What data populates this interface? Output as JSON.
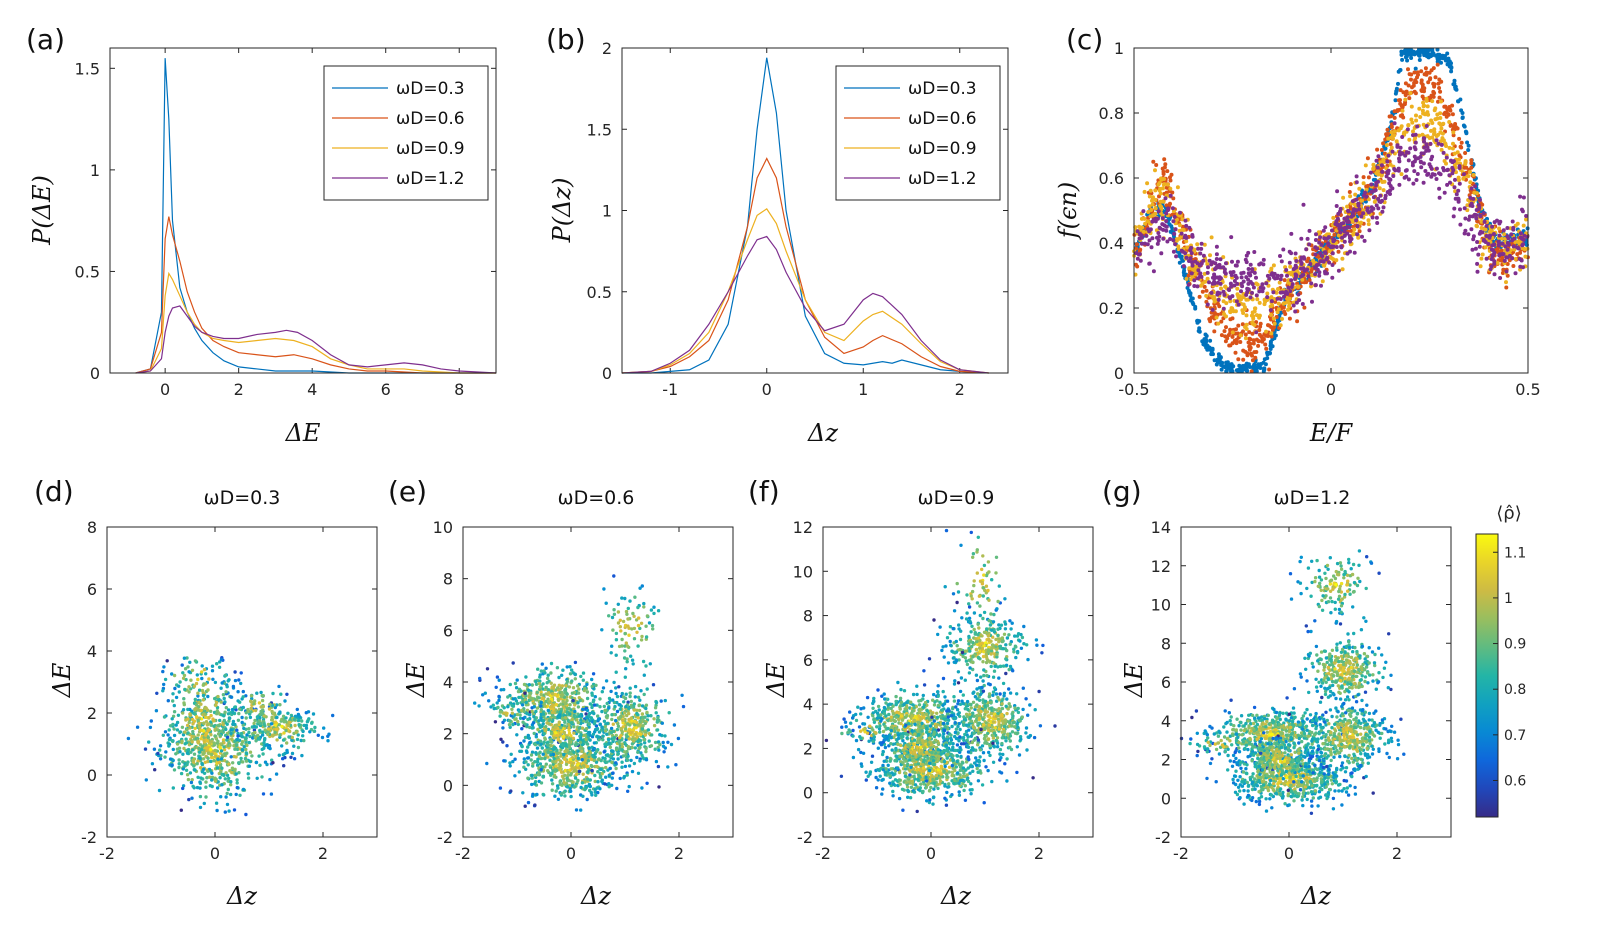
{
  "colors": {
    "s1": "#0072BD",
    "s2": "#D95319",
    "s3": "#EDB120",
    "s4": "#7E2F8E"
  },
  "colorbar": {
    "label": "⟨ρ̂⟩",
    "ticks": [
      "0.6",
      "0.7",
      "0.8",
      "0.9",
      "1",
      "1.1"
    ],
    "range": [
      0.52,
      1.14
    ]
  },
  "chart_data": [
    {
      "panel": "(a)",
      "type": "line",
      "xlabel": "ΔE",
      "ylabel": "P(ΔE)",
      "xlim": [
        -1.5,
        9
      ],
      "ylim": [
        0,
        1.6
      ],
      "xticks": [
        "0",
        "2",
        "4",
        "6",
        "8"
      ],
      "yticks": [
        "0",
        "0.5",
        "1",
        "1.5"
      ],
      "legend_position": "top-right",
      "series": [
        {
          "name": "ωD=0.3",
          "x": [
            -0.8,
            -0.4,
            -0.1,
            0,
            0.1,
            0.2,
            0.4,
            0.6,
            0.8,
            1.0,
            1.3,
            1.6,
            2,
            2.5,
            3,
            4,
            5,
            6,
            7,
            8,
            9
          ],
          "y": [
            0,
            0.02,
            0.3,
            1.55,
            1.25,
            0.75,
            0.42,
            0.3,
            0.22,
            0.16,
            0.1,
            0.06,
            0.03,
            0.02,
            0.01,
            0.01,
            0,
            0,
            0,
            0,
            0
          ]
        },
        {
          "name": "ωD=0.6",
          "x": [
            -0.8,
            -0.4,
            -0.1,
            0,
            0.1,
            0.2,
            0.4,
            0.6,
            0.8,
            1.0,
            1.3,
            1.6,
            2,
            2.5,
            3,
            3.5,
            4,
            4.5,
            5,
            5.5,
            6,
            7,
            8,
            9
          ],
          "y": [
            0,
            0.02,
            0.2,
            0.66,
            0.77,
            0.68,
            0.55,
            0.4,
            0.3,
            0.22,
            0.16,
            0.13,
            0.1,
            0.09,
            0.08,
            0.09,
            0.07,
            0.04,
            0.02,
            0.01,
            0.01,
            0,
            0,
            0
          ]
        },
        {
          "name": "ωD=0.9",
          "x": [
            -0.8,
            -0.4,
            -0.1,
            0,
            0.1,
            0.2,
            0.4,
            0.6,
            0.8,
            1.0,
            1.3,
            1.6,
            2,
            2.5,
            3,
            3.5,
            4,
            4.5,
            5,
            5.5,
            6,
            6.5,
            7,
            8,
            9
          ],
          "y": [
            0,
            0.01,
            0.12,
            0.38,
            0.49,
            0.46,
            0.38,
            0.3,
            0.24,
            0.2,
            0.17,
            0.16,
            0.15,
            0.16,
            0.17,
            0.16,
            0.13,
            0.07,
            0.04,
            0.02,
            0.02,
            0.02,
            0.01,
            0,
            0
          ]
        },
        {
          "name": "ωD=1.2",
          "x": [
            -0.8,
            -0.4,
            -0.1,
            0,
            0.1,
            0.2,
            0.4,
            0.6,
            0.8,
            1.0,
            1.3,
            1.6,
            2,
            2.5,
            3,
            3.3,
            3.6,
            4,
            4.5,
            5,
            5.5,
            6,
            6.5,
            7,
            7.5,
            8,
            9
          ],
          "y": [
            0,
            0.01,
            0.07,
            0.2,
            0.28,
            0.32,
            0.33,
            0.28,
            0.23,
            0.2,
            0.18,
            0.17,
            0.17,
            0.19,
            0.2,
            0.21,
            0.2,
            0.16,
            0.09,
            0.04,
            0.03,
            0.04,
            0.05,
            0.04,
            0.02,
            0.01,
            0
          ]
        }
      ]
    },
    {
      "panel": "(b)",
      "type": "line",
      "xlabel": "Δz",
      "ylabel": "P(Δz)",
      "xlim": [
        -1.5,
        2.5
      ],
      "ylim": [
        0,
        2
      ],
      "xticks": [
        "-1",
        "0",
        "1",
        "2"
      ],
      "yticks": [
        "0",
        "0.5",
        "1",
        "1.5",
        "2"
      ],
      "legend_position": "top-right",
      "series": [
        {
          "name": "ωD=0.3",
          "x": [
            -1.5,
            -1.2,
            -1,
            -0.8,
            -0.6,
            -0.4,
            -0.2,
            -0.1,
            0,
            0.1,
            0.2,
            0.4,
            0.6,
            0.8,
            1.0,
            1.2,
            1.3,
            1.4,
            1.6,
            1.8,
            2.0,
            2.3
          ],
          "y": [
            0,
            0,
            0.01,
            0.02,
            0.08,
            0.3,
            0.9,
            1.5,
            1.94,
            1.6,
            1.0,
            0.35,
            0.12,
            0.06,
            0.05,
            0.07,
            0.06,
            0.08,
            0.05,
            0.02,
            0.01,
            0
          ]
        },
        {
          "name": "ωD=0.6",
          "x": [
            -1.5,
            -1.2,
            -1,
            -0.8,
            -0.6,
            -0.4,
            -0.2,
            -0.1,
            0,
            0.1,
            0.2,
            0.4,
            0.6,
            0.8,
            1.0,
            1.1,
            1.2,
            1.4,
            1.6,
            1.8,
            2.0,
            2.3
          ],
          "y": [
            0,
            0.01,
            0.04,
            0.1,
            0.2,
            0.45,
            0.9,
            1.2,
            1.32,
            1.2,
            0.9,
            0.45,
            0.22,
            0.12,
            0.16,
            0.2,
            0.23,
            0.18,
            0.1,
            0.04,
            0.01,
            0
          ]
        },
        {
          "name": "ωD=0.9",
          "x": [
            -1.5,
            -1.2,
            -1,
            -0.8,
            -0.6,
            -0.4,
            -0.2,
            -0.1,
            0,
            0.1,
            0.2,
            0.4,
            0.6,
            0.8,
            1.0,
            1.1,
            1.2,
            1.4,
            1.6,
            1.8,
            2.0,
            2.3
          ],
          "y": [
            0,
            0.01,
            0.05,
            0.12,
            0.25,
            0.5,
            0.82,
            0.97,
            1.01,
            0.92,
            0.75,
            0.45,
            0.25,
            0.2,
            0.32,
            0.36,
            0.38,
            0.3,
            0.18,
            0.07,
            0.02,
            0
          ]
        },
        {
          "name": "ωD=1.2",
          "x": [
            -1.5,
            -1.2,
            -1,
            -0.8,
            -0.6,
            -0.4,
            -0.2,
            -0.1,
            0,
            0.1,
            0.2,
            0.4,
            0.6,
            0.8,
            1.0,
            1.1,
            1.2,
            1.4,
            1.6,
            1.8,
            2.0,
            2.3
          ],
          "y": [
            0,
            0.01,
            0.06,
            0.14,
            0.3,
            0.5,
            0.72,
            0.82,
            0.84,
            0.76,
            0.62,
            0.4,
            0.26,
            0.3,
            0.45,
            0.49,
            0.47,
            0.36,
            0.2,
            0.08,
            0.02,
            0
          ]
        }
      ]
    },
    {
      "panel": "(c)",
      "type": "scatter",
      "xlabel": "E/F",
      "ylabel": "f(ϵn)",
      "xlim": [
        -0.5,
        0.5
      ],
      "ylim": [
        0,
        1
      ],
      "xticks": [
        "-0.5",
        "0",
        "0.5"
      ],
      "yticks": [
        "0",
        "0.2",
        "0.4",
        "0.6",
        "0.8",
        "1"
      ],
      "series": [
        {
          "name": "ωD=0.3",
          "trend": [
            [
              -0.5,
              0.36
            ],
            [
              -0.46,
              0.5
            ],
            [
              -0.42,
              0.5
            ],
            [
              -0.38,
              0.35
            ],
            [
              -0.33,
              0.12
            ],
            [
              -0.28,
              0.03
            ],
            [
              -0.24,
              0.01
            ],
            [
              -0.17,
              0.02
            ],
            [
              -0.12,
              0.22
            ],
            [
              -0.05,
              0.32
            ],
            [
              0.0,
              0.4
            ],
            [
              0.05,
              0.48
            ],
            [
              0.1,
              0.56
            ],
            [
              0.15,
              0.75
            ],
            [
              0.18,
              0.98
            ],
            [
              0.25,
              0.99
            ],
            [
              0.3,
              0.96
            ],
            [
              0.35,
              0.7
            ],
            [
              0.38,
              0.5
            ],
            [
              0.42,
              0.4
            ],
            [
              0.5,
              0.42
            ]
          ]
        },
        {
          "name": "ωD=0.6",
          "trend": [
            [
              -0.5,
              0.36
            ],
            [
              -0.46,
              0.5
            ],
            [
              -0.43,
              0.6
            ],
            [
              -0.38,
              0.45
            ],
            [
              -0.32,
              0.25
            ],
            [
              -0.27,
              0.14
            ],
            [
              -0.22,
              0.08
            ],
            [
              -0.17,
              0.12
            ],
            [
              -0.12,
              0.22
            ],
            [
              -0.05,
              0.32
            ],
            [
              0.0,
              0.4
            ],
            [
              0.05,
              0.48
            ],
            [
              0.1,
              0.56
            ],
            [
              0.15,
              0.72
            ],
            [
              0.2,
              0.9
            ],
            [
              0.27,
              0.88
            ],
            [
              0.32,
              0.72
            ],
            [
              0.36,
              0.55
            ],
            [
              0.4,
              0.4
            ],
            [
              0.45,
              0.35
            ],
            [
              0.5,
              0.42
            ]
          ]
        },
        {
          "name": "ωD=0.9",
          "trend": [
            [
              -0.5,
              0.36
            ],
            [
              -0.46,
              0.5
            ],
            [
              -0.42,
              0.55
            ],
            [
              -0.37,
              0.4
            ],
            [
              -0.31,
              0.28
            ],
            [
              -0.25,
              0.22
            ],
            [
              -0.19,
              0.2
            ],
            [
              -0.14,
              0.24
            ],
            [
              -0.08,
              0.3
            ],
            [
              0.0,
              0.4
            ],
            [
              0.06,
              0.48
            ],
            [
              0.12,
              0.58
            ],
            [
              0.18,
              0.74
            ],
            [
              0.24,
              0.78
            ],
            [
              0.3,
              0.7
            ],
            [
              0.35,
              0.55
            ],
            [
              0.4,
              0.42
            ],
            [
              0.45,
              0.38
            ],
            [
              0.5,
              0.42
            ]
          ]
        },
        {
          "name": "ωD=1.2",
          "trend": [
            [
              -0.5,
              0.36
            ],
            [
              -0.46,
              0.44
            ],
            [
              -0.42,
              0.46
            ],
            [
              -0.37,
              0.38
            ],
            [
              -0.31,
              0.3
            ],
            [
              -0.25,
              0.28
            ],
            [
              -0.19,
              0.27
            ],
            [
              -0.14,
              0.28
            ],
            [
              -0.08,
              0.32
            ],
            [
              0.0,
              0.4
            ],
            [
              0.06,
              0.46
            ],
            [
              0.12,
              0.55
            ],
            [
              0.18,
              0.66
            ],
            [
              0.24,
              0.68
            ],
            [
              0.3,
              0.6
            ],
            [
              0.35,
              0.5
            ],
            [
              0.4,
              0.4
            ],
            [
              0.45,
              0.38
            ],
            [
              0.5,
              0.42
            ]
          ]
        }
      ]
    },
    {
      "panel": "(d)",
      "type": "scatter",
      "title": "ωD=0.3",
      "xlabel": "Δz",
      "ylabel": "ΔE",
      "xlim": [
        -2,
        3
      ],
      "ylim": [
        -2,
        8
      ],
      "xticks": [
        "-2",
        "0",
        "2"
      ],
      "yticks": [
        "-2",
        "0",
        "2",
        "4",
        "6",
        "8"
      ],
      "clusters": [
        [
          0.0,
          0.8,
          0.5,
          0.8,
          500
        ],
        [
          -0.2,
          1.6,
          0.35,
          0.9,
          300
        ],
        [
          1.2,
          1.5,
          0.35,
          0.35,
          220
        ],
        [
          0.8,
          2.2,
          0.25,
          0.3,
          60
        ],
        [
          -0.3,
          3.2,
          0.3,
          0.4,
          40
        ]
      ]
    },
    {
      "panel": "(e)",
      "type": "scatter",
      "title": "ωD=0.6",
      "xlabel": "Δz",
      "ylabel": "ΔE",
      "xlim": [
        -2,
        3
      ],
      "ylim": [
        -2,
        10
      ],
      "xticks": [
        "-2",
        "0",
        "2"
      ],
      "yticks": [
        "-2",
        "0",
        "2",
        "4",
        "6",
        "8",
        "10"
      ],
      "clusters": [
        [
          0.0,
          0.8,
          0.5,
          0.6,
          550
        ],
        [
          -0.3,
          3.3,
          0.5,
          0.6,
          500
        ],
        [
          1.1,
          2.2,
          0.35,
          0.7,
          380
        ],
        [
          -0.2,
          2.0,
          0.35,
          0.5,
          250
        ],
        [
          1.1,
          6.1,
          0.25,
          0.8,
          90
        ],
        [
          -1.1,
          2.7,
          0.25,
          0.25,
          40
        ]
      ]
    },
    {
      "panel": "(f)",
      "type": "scatter",
      "title": "ωD=0.9",
      "xlabel": "Δz",
      "ylabel": "ΔE",
      "xlim": [
        -2,
        3
      ],
      "ylim": [
        -2,
        12
      ],
      "xticks": [
        "-2",
        "0",
        "2"
      ],
      "yticks": [
        "-2",
        "0",
        "2",
        "4",
        "6",
        "8",
        "10",
        "12"
      ],
      "clusters": [
        [
          0.0,
          1.0,
          0.5,
          0.6,
          550
        ],
        [
          -0.3,
          3.3,
          0.5,
          0.6,
          500
        ],
        [
          1.1,
          3.2,
          0.35,
          0.8,
          420
        ],
        [
          1.0,
          6.6,
          0.35,
          0.7,
          300
        ],
        [
          -0.2,
          2.0,
          0.35,
          0.5,
          250
        ],
        [
          0.9,
          9.5,
          0.25,
          1.0,
          60
        ],
        [
          -1.2,
          2.8,
          0.25,
          0.3,
          40
        ]
      ]
    },
    {
      "panel": "(g)",
      "type": "scatter",
      "title": "ωD=1.2",
      "xlabel": "Δz",
      "ylabel": "ΔE",
      "xlim": [
        -2,
        3
      ],
      "ylim": [
        -2,
        14
      ],
      "xticks": [
        "-2",
        "0",
        "2"
      ],
      "yticks": [
        "-2",
        "0",
        "2",
        "4",
        "6",
        "8",
        "10",
        "12",
        "14"
      ],
      "clusters": [
        [
          0.0,
          1.0,
          0.5,
          0.6,
          550
        ],
        [
          -0.3,
          3.3,
          0.5,
          0.6,
          500
        ],
        [
          1.1,
          3.2,
          0.35,
          0.8,
          420
        ],
        [
          1.0,
          6.6,
          0.35,
          0.8,
          320
        ],
        [
          0.9,
          11.0,
          0.3,
          0.8,
          130
        ],
        [
          -0.2,
          2.0,
          0.35,
          0.5,
          250
        ],
        [
          -1.3,
          2.8,
          0.25,
          0.3,
          40
        ]
      ]
    }
  ]
}
